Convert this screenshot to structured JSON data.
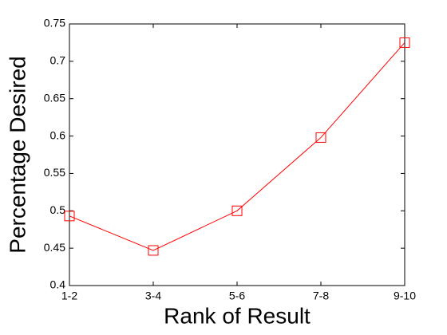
{
  "chart_data": {
    "type": "line",
    "xlabel": "Rank of Result",
    "ylabel": "Percentage Desired",
    "categories": [
      "1-2",
      "3-4",
      "5-6",
      "7-8",
      "9-10"
    ],
    "series": [
      {
        "name": "Percentage Desired",
        "color": "#ff0000",
        "values": [
          0.493,
          0.447,
          0.5,
          0.598,
          0.725
        ]
      }
    ],
    "ylim": [
      0.4,
      0.75
    ],
    "yticks": [
      0.4,
      0.45,
      0.5,
      0.55,
      0.6,
      0.65,
      0.7,
      0.75
    ],
    "grid": false
  }
}
